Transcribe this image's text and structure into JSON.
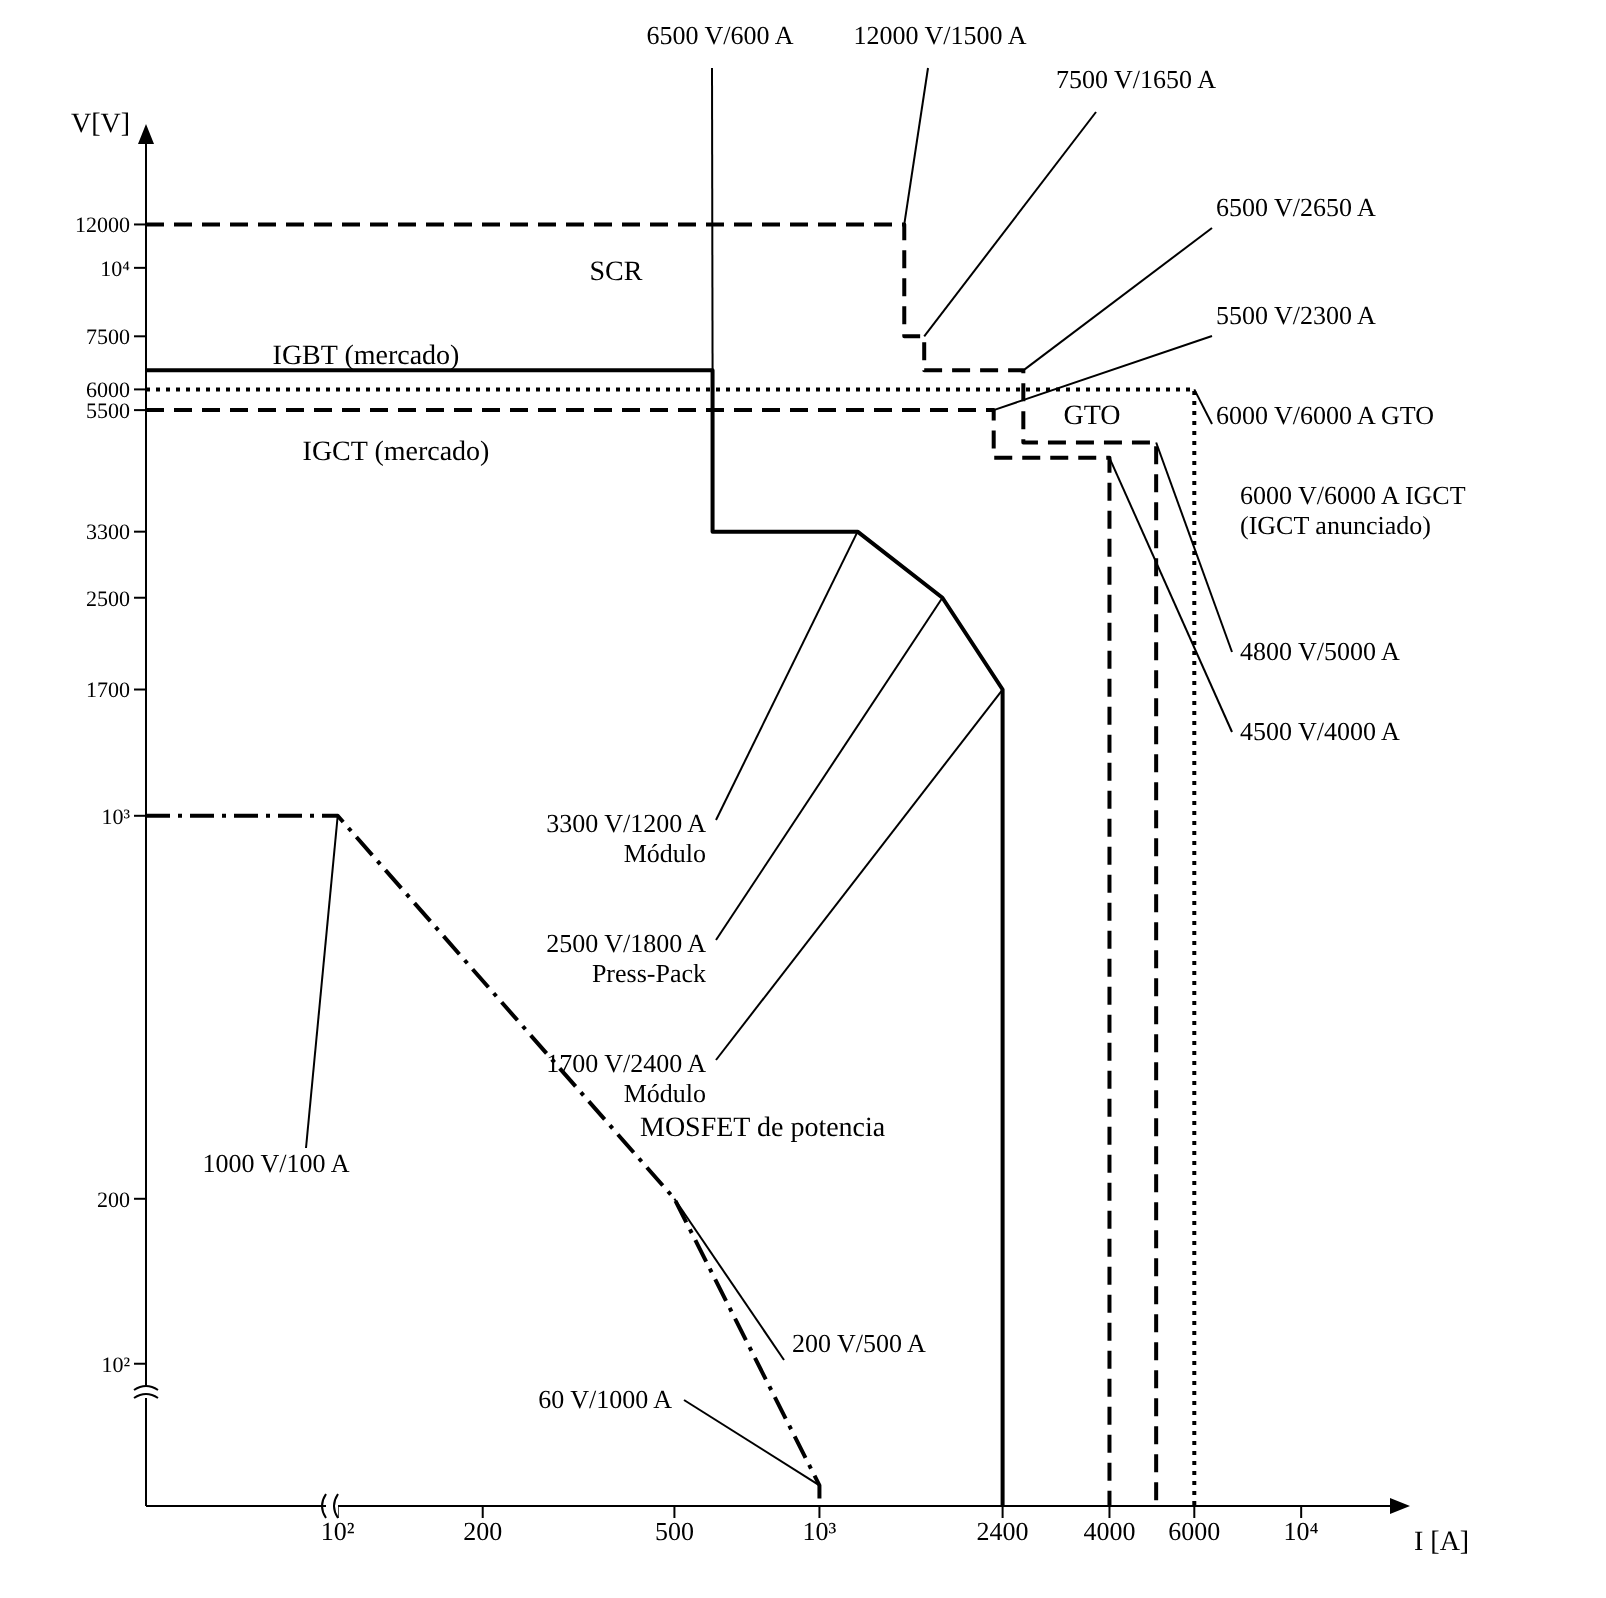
{
  "chart_data": {
    "type": "line",
    "xlabel": "I [A]",
    "ylabel": "V[V]",
    "log": "xy",
    "marker": "none",
    "xlim": [
      40,
      15000
    ],
    "ylim": [
      55,
      16000
    ],
    "xticks": [
      {
        "value": 100,
        "label": "10²"
      },
      200,
      500,
      {
        "value": 1000,
        "label": "10³"
      },
      2400,
      4000,
      6000,
      {
        "value": 10000,
        "label": "10⁴"
      }
    ],
    "yticks": [
      {
        "value": 100,
        "label": "10²"
      },
      200,
      {
        "value": 1000,
        "label": "10³"
      },
      1700,
      2500,
      3300,
      5500,
      6000,
      7500,
      {
        "value": 10000,
        "label": "10⁴"
      },
      12000
    ],
    "series": [
      {
        "name": "SCR",
        "color": "#000000",
        "line_style": "dashed",
        "x": [
          40,
          1500,
          1500,
          1650,
          1650,
          2650,
          2650,
          5000,
          5000
        ],
        "values": [
          12000,
          12000,
          7500,
          7500,
          6500,
          6500,
          4800,
          4800,
          55
        ]
      },
      {
        "name": "IGBT (mercado)",
        "color": "#000000",
        "line_style": "solid",
        "x": [
          40,
          600,
          600,
          1200,
          1800,
          2400,
          2400
        ],
        "values": [
          6500,
          6500,
          3300,
          3300,
          2500,
          1700,
          55
        ]
      },
      {
        "name": "IGCT (mercado)",
        "color": "#000000",
        "line_style": "dashed",
        "x": [
          40,
          2300,
          2300,
          4000,
          4000
        ],
        "values": [
          5500,
          5500,
          4500,
          4500,
          55
        ]
      },
      {
        "name": "GTO",
        "color": "#000000",
        "line_style": "dotted",
        "x": [
          40,
          6000,
          6000
        ],
        "values": [
          6000,
          6000,
          55
        ]
      },
      {
        "name": "MOSFET de potencia",
        "color": "#000000",
        "line_style": "dashdot",
        "x": [
          40,
          100,
          500,
          1000,
          1000
        ],
        "values": [
          1000,
          1000,
          200,
          60,
          55
        ]
      }
    ],
    "annotations": [
      {
        "text": "6500 V/600 A",
        "x": 600,
        "y": 6500
      },
      {
        "text": "12000 V/1500 A",
        "x": 1500,
        "y": 12000
      },
      {
        "text": "7500 V/1650 A",
        "x": 1650,
        "y": 7500
      },
      {
        "text": "6500 V/2650 A",
        "x": 2650,
        "y": 6500
      },
      {
        "text": "5500 V/2300 A",
        "x": 2300,
        "y": 5500
      },
      {
        "text": "6000 V/6000 A GTO",
        "x": 6000,
        "y": 6000
      },
      "6000 V/6000 A IGCT\n(IGCT anunciado)",
      {
        "text": "4800 V/5000 A",
        "x": 5000,
        "y": 4800
      },
      {
        "text": "4500 V/4000 A",
        "x": 4000,
        "y": 4500
      },
      {
        "text": "3300 V/1200 A\nMódulo",
        "x": 1200,
        "y": 3300
      },
      {
        "text": "2500 V/1800 A\nPress-Pack",
        "x": 1800,
        "y": 2500
      },
      {
        "text": "1700 V/2400 A\nMódulo",
        "x": 2400,
        "y": 1700
      },
      {
        "text": "1000 V/100 A",
        "x": 100,
        "y": 1000
      },
      {
        "text": "200 V/500 A",
        "x": 500,
        "y": 200
      },
      {
        "text": "60 V/1000 A",
        "x": 1000,
        "y": 60
      }
    ]
  }
}
